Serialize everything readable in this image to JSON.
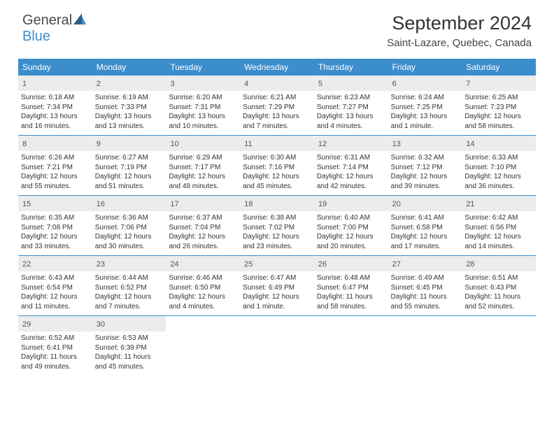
{
  "brand": {
    "general": "General",
    "blue": "Blue"
  },
  "title": "September 2024",
  "location": "Saint-Lazare, Quebec, Canada",
  "colors": {
    "accent": "#3c8dcc",
    "header_text": "#ffffff",
    "daynum_bg": "#ececec",
    "text": "#333333",
    "border": "#3c8dcc"
  },
  "day_names": [
    "Sunday",
    "Monday",
    "Tuesday",
    "Wednesday",
    "Thursday",
    "Friday",
    "Saturday"
  ],
  "weeks": [
    [
      {
        "n": "1",
        "sr": "Sunrise: 6:18 AM",
        "ss": "Sunset: 7:34 PM",
        "d1": "Daylight: 13 hours",
        "d2": "and 16 minutes."
      },
      {
        "n": "2",
        "sr": "Sunrise: 6:19 AM",
        "ss": "Sunset: 7:33 PM",
        "d1": "Daylight: 13 hours",
        "d2": "and 13 minutes."
      },
      {
        "n": "3",
        "sr": "Sunrise: 6:20 AM",
        "ss": "Sunset: 7:31 PM",
        "d1": "Daylight: 13 hours",
        "d2": "and 10 minutes."
      },
      {
        "n": "4",
        "sr": "Sunrise: 6:21 AM",
        "ss": "Sunset: 7:29 PM",
        "d1": "Daylight: 13 hours",
        "d2": "and 7 minutes."
      },
      {
        "n": "5",
        "sr": "Sunrise: 6:23 AM",
        "ss": "Sunset: 7:27 PM",
        "d1": "Daylight: 13 hours",
        "d2": "and 4 minutes."
      },
      {
        "n": "6",
        "sr": "Sunrise: 6:24 AM",
        "ss": "Sunset: 7:25 PM",
        "d1": "Daylight: 13 hours",
        "d2": "and 1 minute."
      },
      {
        "n": "7",
        "sr": "Sunrise: 6:25 AM",
        "ss": "Sunset: 7:23 PM",
        "d1": "Daylight: 12 hours",
        "d2": "and 58 minutes."
      }
    ],
    [
      {
        "n": "8",
        "sr": "Sunrise: 6:26 AM",
        "ss": "Sunset: 7:21 PM",
        "d1": "Daylight: 12 hours",
        "d2": "and 55 minutes."
      },
      {
        "n": "9",
        "sr": "Sunrise: 6:27 AM",
        "ss": "Sunset: 7:19 PM",
        "d1": "Daylight: 12 hours",
        "d2": "and 51 minutes."
      },
      {
        "n": "10",
        "sr": "Sunrise: 6:29 AM",
        "ss": "Sunset: 7:17 PM",
        "d1": "Daylight: 12 hours",
        "d2": "and 48 minutes."
      },
      {
        "n": "11",
        "sr": "Sunrise: 6:30 AM",
        "ss": "Sunset: 7:16 PM",
        "d1": "Daylight: 12 hours",
        "d2": "and 45 minutes."
      },
      {
        "n": "12",
        "sr": "Sunrise: 6:31 AM",
        "ss": "Sunset: 7:14 PM",
        "d1": "Daylight: 12 hours",
        "d2": "and 42 minutes."
      },
      {
        "n": "13",
        "sr": "Sunrise: 6:32 AM",
        "ss": "Sunset: 7:12 PM",
        "d1": "Daylight: 12 hours",
        "d2": "and 39 minutes."
      },
      {
        "n": "14",
        "sr": "Sunrise: 6:33 AM",
        "ss": "Sunset: 7:10 PM",
        "d1": "Daylight: 12 hours",
        "d2": "and 36 minutes."
      }
    ],
    [
      {
        "n": "15",
        "sr": "Sunrise: 6:35 AM",
        "ss": "Sunset: 7:08 PM",
        "d1": "Daylight: 12 hours",
        "d2": "and 33 minutes."
      },
      {
        "n": "16",
        "sr": "Sunrise: 6:36 AM",
        "ss": "Sunset: 7:06 PM",
        "d1": "Daylight: 12 hours",
        "d2": "and 30 minutes."
      },
      {
        "n": "17",
        "sr": "Sunrise: 6:37 AM",
        "ss": "Sunset: 7:04 PM",
        "d1": "Daylight: 12 hours",
        "d2": "and 26 minutes."
      },
      {
        "n": "18",
        "sr": "Sunrise: 6:38 AM",
        "ss": "Sunset: 7:02 PM",
        "d1": "Daylight: 12 hours",
        "d2": "and 23 minutes."
      },
      {
        "n": "19",
        "sr": "Sunrise: 6:40 AM",
        "ss": "Sunset: 7:00 PM",
        "d1": "Daylight: 12 hours",
        "d2": "and 20 minutes."
      },
      {
        "n": "20",
        "sr": "Sunrise: 6:41 AM",
        "ss": "Sunset: 6:58 PM",
        "d1": "Daylight: 12 hours",
        "d2": "and 17 minutes."
      },
      {
        "n": "21",
        "sr": "Sunrise: 6:42 AM",
        "ss": "Sunset: 6:56 PM",
        "d1": "Daylight: 12 hours",
        "d2": "and 14 minutes."
      }
    ],
    [
      {
        "n": "22",
        "sr": "Sunrise: 6:43 AM",
        "ss": "Sunset: 6:54 PM",
        "d1": "Daylight: 12 hours",
        "d2": "and 11 minutes."
      },
      {
        "n": "23",
        "sr": "Sunrise: 6:44 AM",
        "ss": "Sunset: 6:52 PM",
        "d1": "Daylight: 12 hours",
        "d2": "and 7 minutes."
      },
      {
        "n": "24",
        "sr": "Sunrise: 6:46 AM",
        "ss": "Sunset: 6:50 PM",
        "d1": "Daylight: 12 hours",
        "d2": "and 4 minutes."
      },
      {
        "n": "25",
        "sr": "Sunrise: 6:47 AM",
        "ss": "Sunset: 6:49 PM",
        "d1": "Daylight: 12 hours",
        "d2": "and 1 minute."
      },
      {
        "n": "26",
        "sr": "Sunrise: 6:48 AM",
        "ss": "Sunset: 6:47 PM",
        "d1": "Daylight: 11 hours",
        "d2": "and 58 minutes."
      },
      {
        "n": "27",
        "sr": "Sunrise: 6:49 AM",
        "ss": "Sunset: 6:45 PM",
        "d1": "Daylight: 11 hours",
        "d2": "and 55 minutes."
      },
      {
        "n": "28",
        "sr": "Sunrise: 6:51 AM",
        "ss": "Sunset: 6:43 PM",
        "d1": "Daylight: 11 hours",
        "d2": "and 52 minutes."
      }
    ],
    [
      {
        "n": "29",
        "sr": "Sunrise: 6:52 AM",
        "ss": "Sunset: 6:41 PM",
        "d1": "Daylight: 11 hours",
        "d2": "and 49 minutes."
      },
      {
        "n": "30",
        "sr": "Sunrise: 6:53 AM",
        "ss": "Sunset: 6:39 PM",
        "d1": "Daylight: 11 hours",
        "d2": "and 45 minutes."
      },
      null,
      null,
      null,
      null,
      null
    ]
  ]
}
